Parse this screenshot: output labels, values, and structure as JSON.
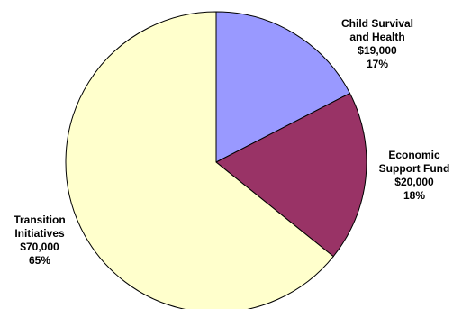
{
  "chart_data": {
    "type": "pie",
    "title": "",
    "slices": [
      {
        "name": [
          "Child Survival",
          "and Health"
        ],
        "value_label": "$19,000",
        "percent_label": "17%",
        "value": 19000,
        "color": "#9999FF"
      },
      {
        "name": [
          "Economic",
          "Support Fund"
        ],
        "value_label": "$20,000",
        "percent_label": "18%",
        "value": 20000,
        "color": "#993366"
      },
      {
        "name": [
          "Transition",
          "Initiatives"
        ],
        "value_label": "$70,000",
        "percent_label": "65%",
        "value": 70000,
        "color": "#FFFFCC"
      }
    ],
    "legend": "none",
    "labels": "outside"
  }
}
